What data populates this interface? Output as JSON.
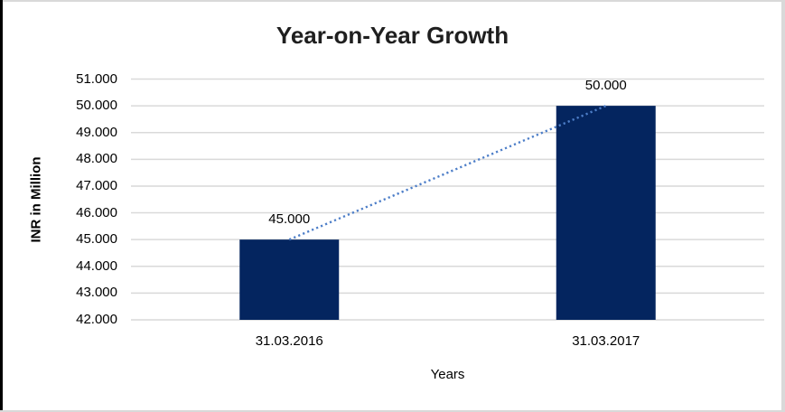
{
  "chart_data": {
    "type": "bar",
    "title": "Year-on-Year Growth",
    "xlabel": "Years",
    "ylabel": "INR in Million",
    "categories": [
      "31.03.2016",
      "31.03.2017"
    ],
    "series": [
      {
        "name": "INR in Million",
        "values": [
          45000,
          50000
        ]
      }
    ],
    "data_labels": [
      "45.000",
      "50.000"
    ],
    "ylim": [
      42000,
      51000
    ],
    "ytick_interval": 1000,
    "ytick_labels": [
      "42.000",
      "43.000",
      "44.000",
      "45.000",
      "46.000",
      "47.000",
      "48.000",
      "49.000",
      "50.000",
      "51.000"
    ],
    "grid": true,
    "legend": "none",
    "trendline": {
      "type": "linear",
      "style": "dotted",
      "color": "#4d7ec8"
    },
    "colors": {
      "bar": "#04255f",
      "gridline": "#d9d9d9",
      "axis_line": "#d9d9d9",
      "text": "#000000",
      "title_text": "#1f1f1f",
      "frame_left": "#000000",
      "frame": "#d9d9d9",
      "background": "#ffffff"
    }
  }
}
